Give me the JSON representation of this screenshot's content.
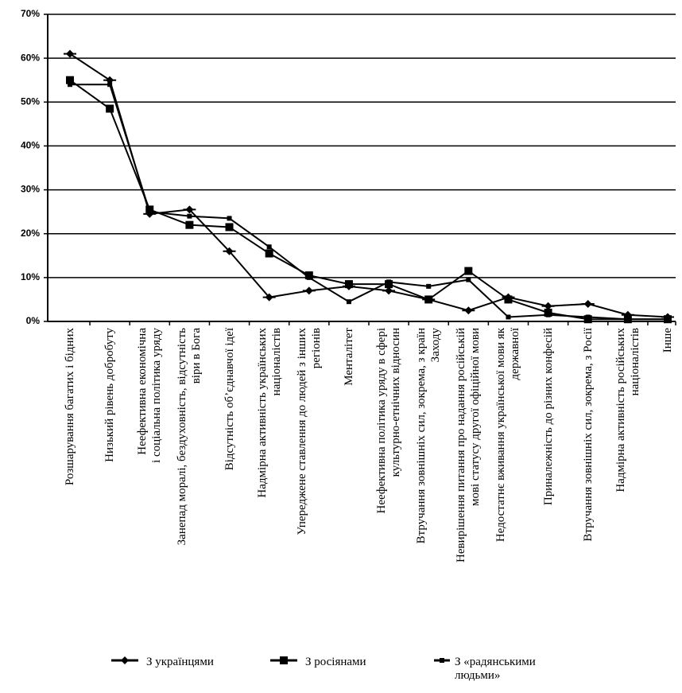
{
  "chart_data": {
    "type": "line",
    "categories": [
      "Розшарування багатих і бідних",
      "Низький рівень добробуту",
      "Неефективна економічна\nі соціальна політика уряду",
      "Занепад моралі, бездуховність, відсутність\nвіри в Бога",
      "Відсутність об’єднавчої ідеї",
      "Надмірна активність українських\nнаціоналістів",
      "Упереджене ставлення до людей з інших\nрегіонів",
      "Менталітет",
      "Неефективна політика уряду в сфері\nкультурно-етнічних відносин",
      "Втручання зовнішніх сил, зокрема, з країн\nЗаходу",
      "Невирішення питання про надання російській\nмові статусу другої офіційної мови",
      "Недостатнє вживання української мови як\nдержавної",
      "Приналежність до різних конфесій",
      "Втручання зовнішніх сил, зокрема, з Росії",
      "Надмірна активність російських\nнаціоналістів",
      "Інше"
    ],
    "series": [
      {
        "name": "З українцями",
        "color": "#000000",
        "marker": "diamond",
        "values": [
          61,
          55,
          24.5,
          25.5,
          16,
          5.5,
          7,
          8,
          7,
          5,
          2.5,
          5.5,
          3.5,
          4,
          1.5,
          1
        ]
      },
      {
        "name": "З росіянами",
        "color": "#000000",
        "marker": "square",
        "values": [
          55,
          48.5,
          25.5,
          22,
          21.5,
          15.5,
          10.5,
          8.5,
          8.5,
          5,
          11.5,
          5,
          2,
          0.5,
          0.5,
          0.5
        ]
      },
      {
        "name": "З «радянськими людьми»",
        "color": "#000000",
        "marker": "small-square",
        "values": [
          54,
          54,
          25,
          24,
          23.5,
          17,
          10,
          4.5,
          9,
          8,
          9.5,
          1,
          1.5,
          1,
          0.5,
          0.5
        ]
      }
    ],
    "ylim": [
      0,
      70
    ],
    "yticks": [
      {
        "value": 0,
        "label": "0%"
      },
      {
        "value": 10,
        "label": "10%"
      },
      {
        "value": 20,
        "label": "20%"
      },
      {
        "value": 30,
        "label": "30%"
      },
      {
        "value": 40,
        "label": "40%"
      },
      {
        "value": 50,
        "label": "50%"
      },
      {
        "value": 60,
        "label": "60%"
      },
      {
        "value": 70,
        "label": "70%"
      }
    ],
    "grid": true,
    "legend": "bottom"
  }
}
